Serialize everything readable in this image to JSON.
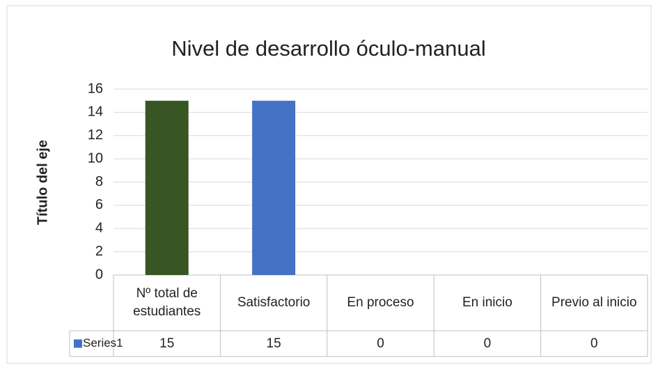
{
  "chart_data": {
    "type": "bar",
    "title": "Nivel de desarrollo óculo-manual",
    "y_axis_label": "Título del eje",
    "categories": [
      "Nº total de estudiantes",
      "Satisfactorio",
      "En proceso",
      "En inicio",
      "Previo al inicio"
    ],
    "series": [
      {
        "name": "Series1",
        "color": "#4472c4",
        "point_colors": [
          "#375623",
          "#4472c4",
          "#4472c4",
          "#4472c4",
          "#4472c4"
        ],
        "values": [
          15,
          15,
          0,
          0,
          0
        ]
      }
    ],
    "ylim": [
      0,
      16
    ],
    "yticks": [
      0,
      2,
      4,
      6,
      8,
      10,
      12,
      14,
      16
    ],
    "grid": true,
    "data_table": true
  }
}
